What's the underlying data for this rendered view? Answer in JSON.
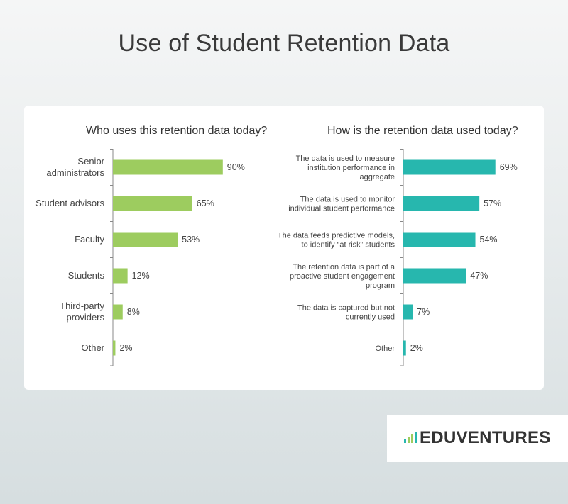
{
  "page": {
    "title": "Use of Student Retention Data"
  },
  "brand": {
    "name": "EDUVENTURES",
    "mark_colors": [
      "#27b7ae",
      "#9dcc5f",
      "#9dcc5f",
      "#27b7ae"
    ]
  },
  "colors": {
    "green": "#9dcc5f",
    "teal": "#27b7ae"
  },
  "chart_data": [
    {
      "type": "bar",
      "orientation": "horizontal",
      "title": "Who uses this retention data today?",
      "categories": [
        "Senior administrators",
        "Student advisors",
        "Faculty",
        "Students",
        "Third-party providers",
        "Other"
      ],
      "category_lines": [
        [
          "Senior",
          "administrators"
        ],
        [
          "Student advisors"
        ],
        [
          "Faculty"
        ],
        [
          "Students"
        ],
        [
          "Third-party",
          "providers"
        ],
        [
          "Other"
        ]
      ],
      "values": [
        90,
        65,
        53,
        12,
        8,
        2
      ],
      "labels": [
        "90%",
        "65%",
        "53%",
        "12%",
        "8%",
        "2%"
      ],
      "unit": "%",
      "color": "#9dcc5f",
      "xlim": [
        0,
        100
      ],
      "grid": false,
      "legend": "none"
    },
    {
      "type": "bar",
      "orientation": "horizontal",
      "title": "How is the retention data used today?",
      "categories": [
        "The data is used to measure institution performance in aggregate",
        "The data is used to monitor individual student performance",
        "The data feeds predictive models, to identify “at risk” students",
        "The retention data is part of a proactive student engagement program",
        "The data is captured  but not currently used",
        "Other"
      ],
      "category_lines": [
        [
          "The data is used to measure",
          "institution performance in",
          "aggregate"
        ],
        [
          "The data is used to monitor",
          "individual student performance"
        ],
        [
          "The data feeds predictive models,",
          "to identify “at risk” students"
        ],
        [
          "The retention data is part of a",
          "proactive student engagement",
          "program"
        ],
        [
          "The data is captured  but not",
          "currently used"
        ],
        [
          "Other"
        ]
      ],
      "values": [
        69,
        57,
        54,
        47,
        7,
        2
      ],
      "labels": [
        "69%",
        "57%",
        "54%",
        "47%",
        "7%",
        "2%"
      ],
      "unit": "%",
      "color": "#27b7ae",
      "xlim": [
        0,
        100
      ],
      "grid": false,
      "legend": "none"
    }
  ]
}
